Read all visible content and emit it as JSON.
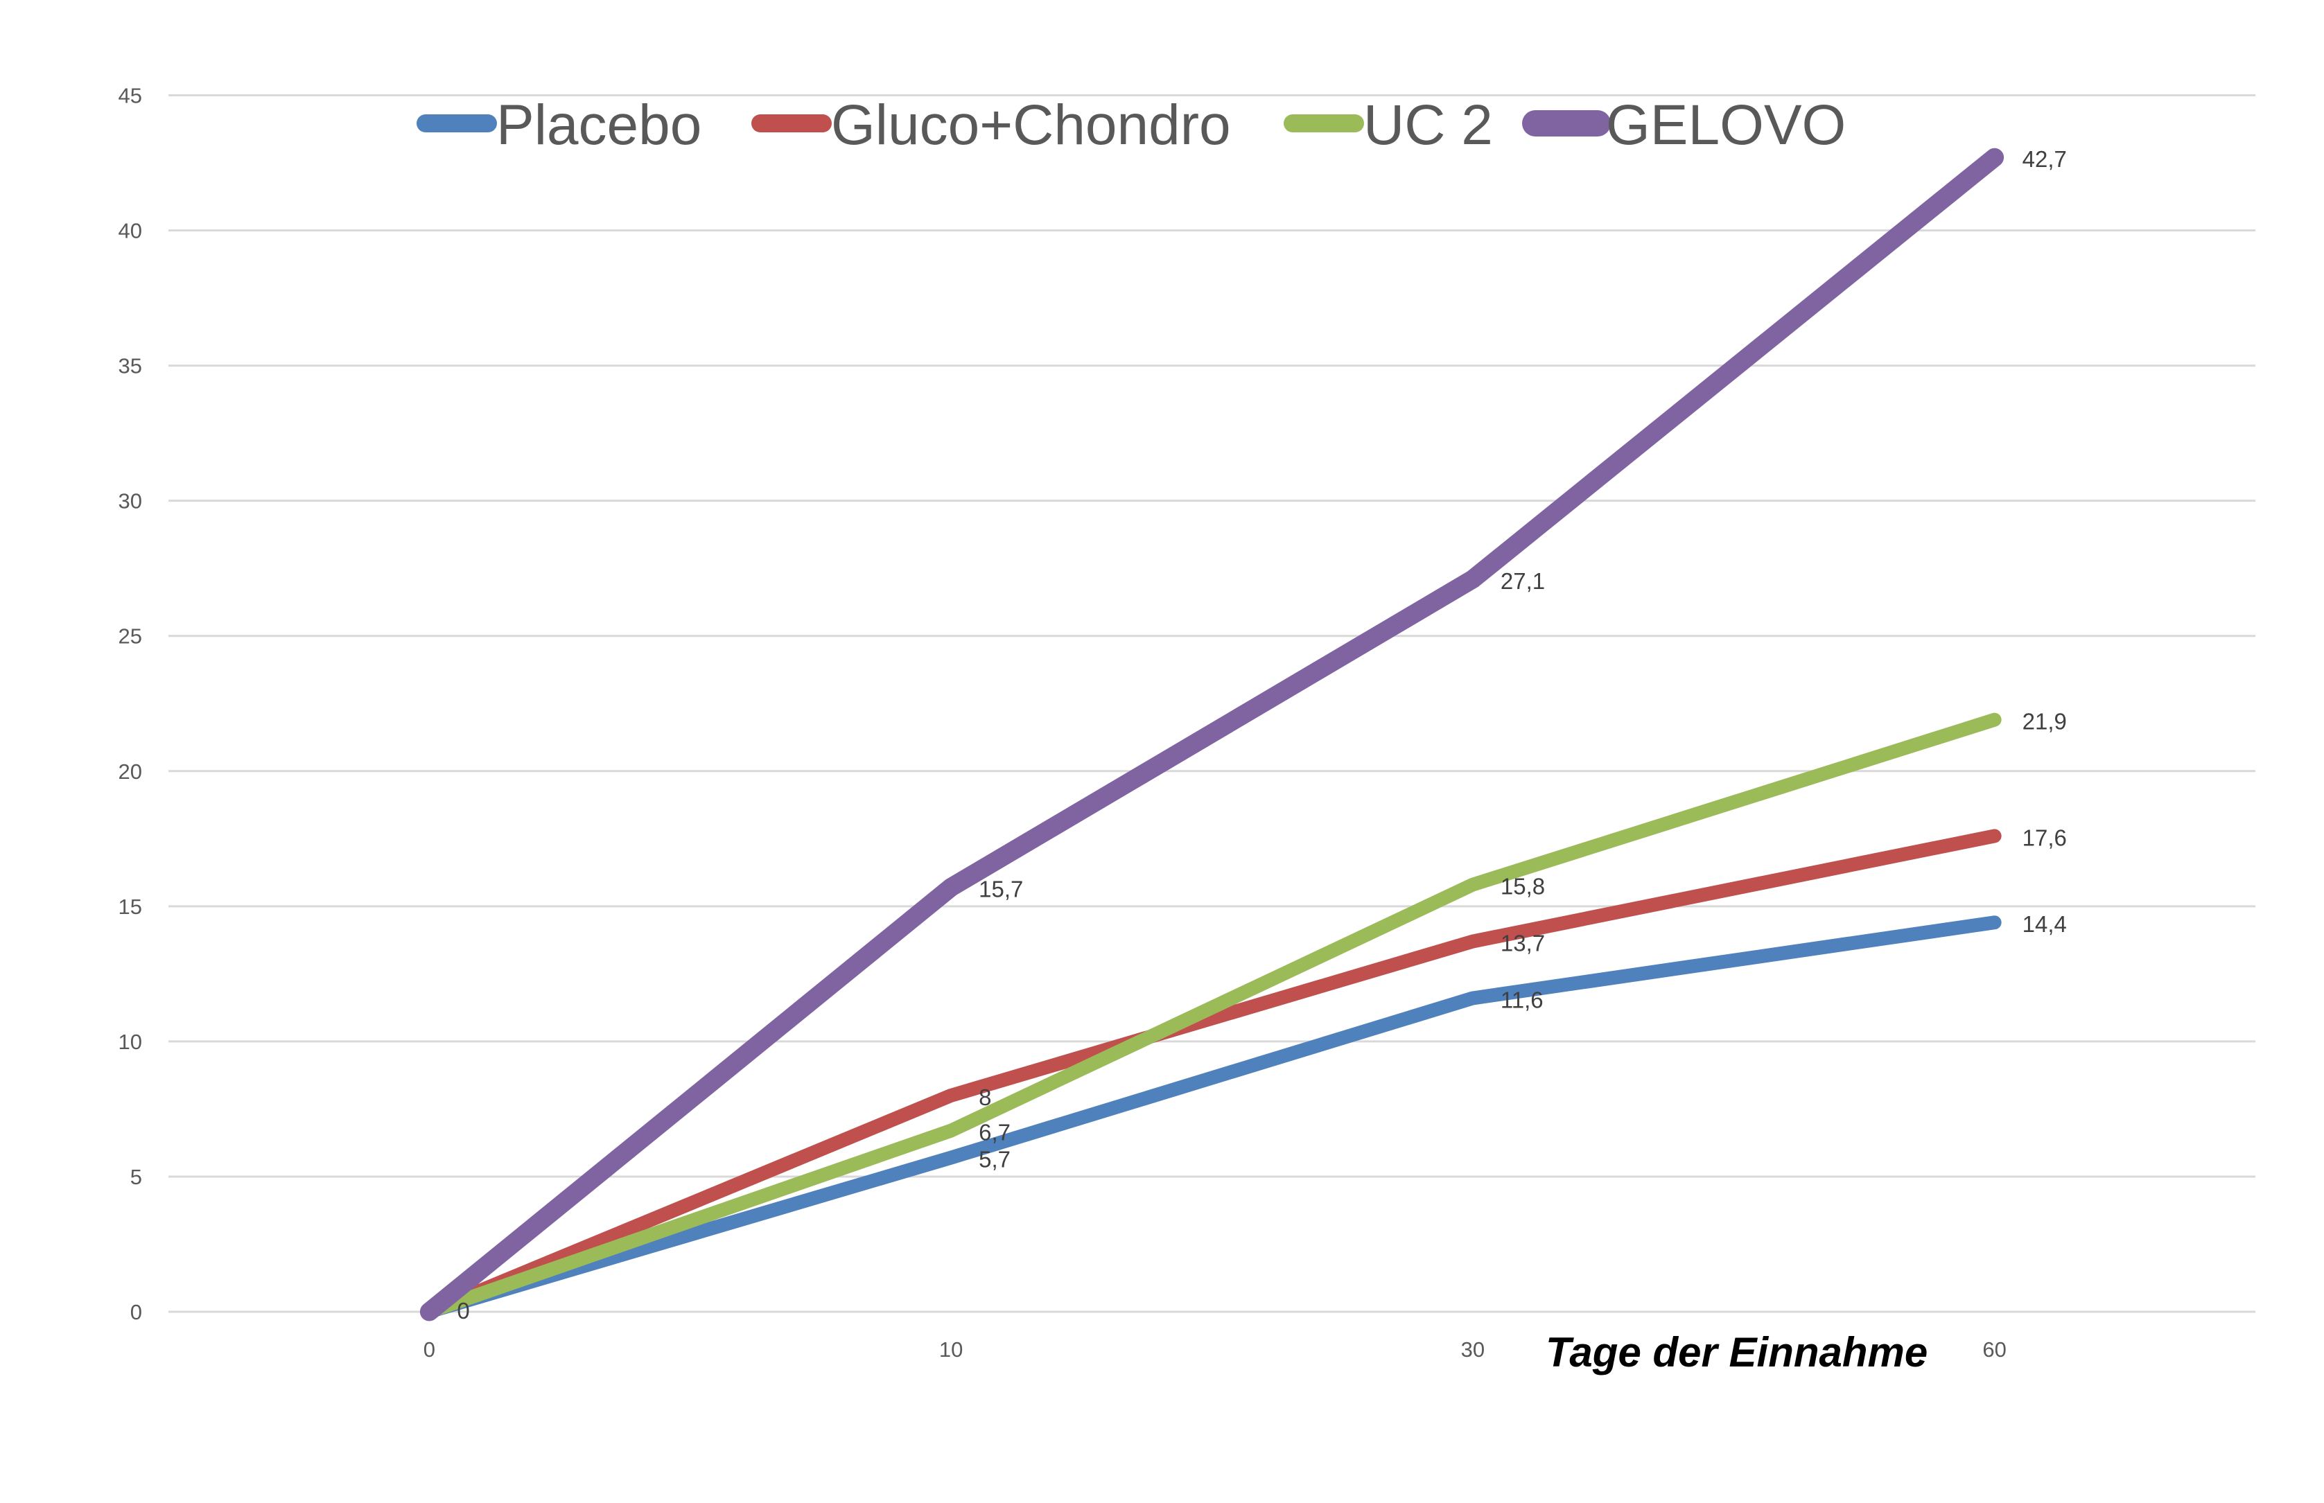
{
  "chart_data": {
    "type": "line",
    "title": "",
    "xlabel": "Tage der Einnahme",
    "ylabel": "",
    "categories": [
      "0",
      "10",
      "30",
      "60"
    ],
    "ylim": [
      0,
      45
    ],
    "yticks": [
      0,
      5,
      10,
      15,
      20,
      25,
      30,
      35,
      40,
      45
    ],
    "grid": true,
    "legend_position": "top",
    "series": [
      {
        "name": "Placebo",
        "color": "#4F81BD",
        "values": [
          0,
          5.7,
          11.6,
          14.4
        ],
        "labels": [
          "0",
          "5,7",
          "11,6",
          "14,4"
        ]
      },
      {
        "name": "Gluco+Chondro",
        "color": "#C0504D",
        "values": [
          0,
          8,
          13.7,
          17.6
        ],
        "labels": [
          "0",
          "8",
          "13,7",
          "17,6"
        ]
      },
      {
        "name": "UC 2",
        "color": "#9BBB59",
        "values": [
          0,
          6.7,
          15.8,
          21.9
        ],
        "labels": [
          "0",
          "6,7",
          "15,8",
          "21,9"
        ]
      },
      {
        "name": "GELOVO",
        "color": "#8064A2",
        "values": [
          0,
          15.7,
          27.1,
          42.7
        ],
        "labels": [
          "0",
          "15,7",
          "27,1",
          "42,7"
        ]
      }
    ]
  }
}
